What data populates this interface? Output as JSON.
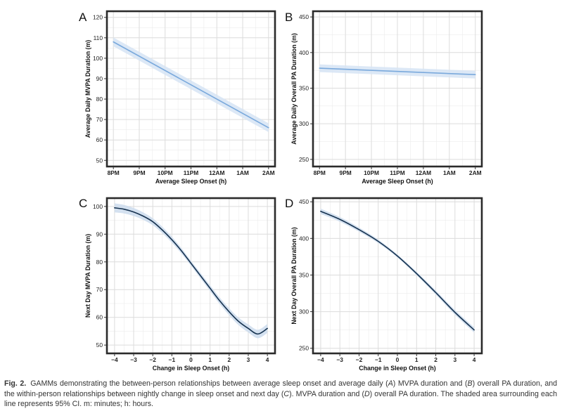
{
  "chart_data": [
    {
      "type": "line",
      "panel": "A",
      "xlabel": "Average Sleep Onset (h)",
      "ylabel": "Average Daily MVPA Duration (m)",
      "x_tick_labels": [
        "8PM",
        "9PM",
        "10PM",
        "11PM",
        "12AM",
        "1AM",
        "2AM"
      ],
      "x_tick_values": [
        20,
        21,
        22,
        23,
        24,
        25,
        26
      ],
      "xlim": [
        19.75,
        26.25
      ],
      "ylim": [
        47,
        123
      ],
      "y_ticks": [
        50,
        60,
        70,
        80,
        90,
        100,
        110,
        120
      ],
      "series": [
        {
          "name": "fit",
          "x": [
            20,
            26
          ],
          "y": [
            108,
            66
          ]
        }
      ],
      "ci_width": 1.2,
      "line_color": "#7aa9dc",
      "ci_color": "#d6e4f5"
    },
    {
      "type": "line",
      "panel": "B",
      "xlabel": "Average Sleep Onset (h)",
      "ylabel": "Average Daily Overall PA Duration (m)",
      "x_tick_labels": [
        "8PM",
        "9PM",
        "10PM",
        "11PM",
        "12AM",
        "1AM",
        "2AM"
      ],
      "x_tick_values": [
        20,
        21,
        22,
        23,
        24,
        25,
        26
      ],
      "xlim": [
        19.75,
        26.25
      ],
      "ylim": [
        240,
        458
      ],
      "y_ticks": [
        250,
        300,
        350,
        400,
        450
      ],
      "series": [
        {
          "name": "fit",
          "x": [
            20,
            26
          ],
          "y": [
            378,
            369
          ]
        }
      ],
      "ci_width": 3,
      "line_color": "#7aa9dc",
      "ci_color": "#d6e4f5"
    },
    {
      "type": "line",
      "panel": "C",
      "xlabel": "Change in Sleep Onset (h)",
      "ylabel": "Next Day MVPA Duration (m)",
      "x_tick_labels": [
        "−4",
        "−3",
        "−2",
        "−1",
        "0",
        "1",
        "2",
        "3",
        "4"
      ],
      "x_tick_values": [
        -4,
        -3,
        -2,
        -1,
        0,
        1,
        2,
        3,
        4
      ],
      "xlim": [
        -4.4,
        4.4
      ],
      "ylim": [
        47,
        103
      ],
      "y_ticks": [
        50,
        60,
        70,
        80,
        90,
        100
      ],
      "series": [
        {
          "name": "fit",
          "x": [
            -4,
            -3.5,
            -3,
            -2.5,
            -2,
            -1.5,
            -1,
            -0.5,
            0,
            0.5,
            1,
            1.5,
            2,
            2.5,
            3,
            3.5,
            4
          ],
          "y": [
            99.5,
            99,
            98,
            96.5,
            94.5,
            91.5,
            88,
            84,
            79.5,
            75,
            70.5,
            66,
            62,
            58.5,
            56,
            54,
            56
          ]
        }
      ],
      "ci_width": 0.9,
      "line_color": "#16324f",
      "ci_color": "#cddced"
    },
    {
      "type": "line",
      "panel": "D",
      "xlabel": "Change in Sleep Onset (h)",
      "ylabel": "Next Day Overall PA Duration (m)",
      "x_tick_labels": [
        "−4",
        "−3",
        "−2",
        "−1",
        "0",
        "1",
        "2",
        "3",
        "4"
      ],
      "x_tick_values": [
        -4,
        -3,
        -2,
        -1,
        0,
        1,
        2,
        3,
        4
      ],
      "xlim": [
        -4.4,
        4.4
      ],
      "ylim": [
        243,
        455
      ],
      "y_ticks": [
        250,
        300,
        350,
        400,
        450
      ],
      "series": [
        {
          "name": "fit",
          "x": [
            -4,
            -3,
            -2,
            -1,
            0,
            1,
            2,
            3,
            4
          ],
          "y": [
            437,
            426,
            412,
            396,
            376,
            352,
            326,
            299,
            275
          ]
        }
      ],
      "ci_width": 2,
      "line_color": "#16324f",
      "ci_color": "#cddced"
    }
  ],
  "caption": {
    "label": "Fig. 2.",
    "text_parts": [
      "GAMMs demonstrating the between-person relationships between average sleep onset and average daily (",
      "A",
      ") MVPA duration and (",
      "B",
      ") overall PA duration, and the within-person relationships between nightly change in sleep onset and next day (",
      "C",
      "). MVPA duration and (",
      "D",
      ") overall PA duration. The shaded area surrounding each line represents 95% CI. m: minutes; h: hours."
    ]
  }
}
